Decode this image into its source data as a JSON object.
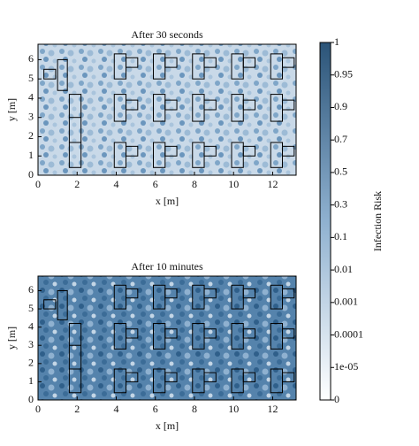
{
  "chart_data": [
    {
      "type": "heatmap",
      "title": "After 30 seconds",
      "xlabel": "x [m]",
      "ylabel": "y [m]",
      "xlim": [
        0,
        13.2
      ],
      "ylim": [
        0,
        6.8
      ],
      "xticks": [
        0,
        2,
        4,
        6,
        8,
        10,
        12
      ],
      "yticks": [
        0,
        1,
        2,
        3,
        4,
        5,
        6
      ]
    },
    {
      "type": "heatmap",
      "title": "After 10 minutes",
      "xlabel": "x [m]",
      "ylabel": "y [m]",
      "xlim": [
        0,
        13.2
      ],
      "ylim": [
        0,
        6.8
      ],
      "xticks": [
        0,
        2,
        4,
        6,
        8,
        10,
        12
      ],
      "yticks": [
        0,
        1,
        2,
        3,
        4,
        5,
        6
      ]
    }
  ],
  "colorbar": {
    "label": "Infection Risk",
    "ticks": [
      0,
      {
        "value": 1e-05,
        "label": "1e-05"
      },
      0.0001,
      0.001,
      0.01,
      0.1,
      0.3,
      0.5,
      0.7,
      0.9,
      0.95,
      1
    ]
  }
}
